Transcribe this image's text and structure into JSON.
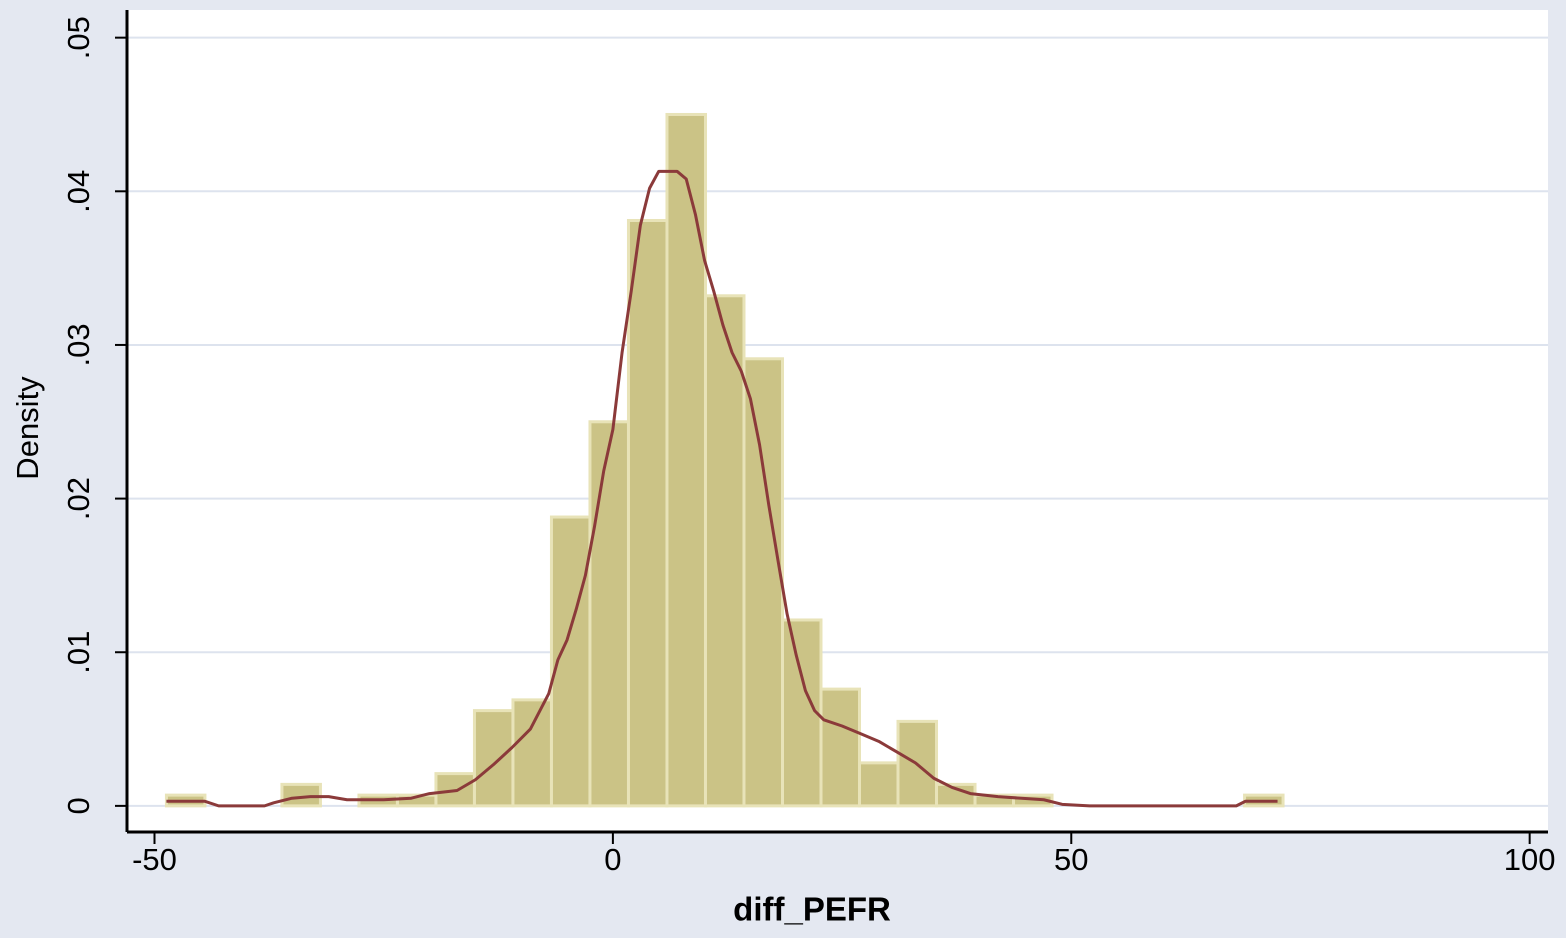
{
  "chart_data": {
    "type": "histogram",
    "x_label": "diff_PEFR",
    "y_label": "Density",
    "bins": [
      -48.7,
      -44.5,
      -40.3,
      -36.1,
      -31.9,
      -27.7,
      -23.5,
      -19.3,
      -15.1,
      -10.9,
      -6.7,
      -2.5,
      1.7,
      5.9,
      10.1,
      14.3,
      18.5,
      22.7,
      26.9,
      31.1,
      35.3,
      39.5,
      43.7,
      47.9,
      52.1,
      56.3,
      60.5,
      64.7,
      68.9,
      73.1
    ],
    "values": [
      0.0007,
      0,
      0,
      0.0014,
      0,
      0.0007,
      0.0007,
      0.0021,
      0.0062,
      0.0069,
      0.0188,
      0.025,
      0.0381,
      0.045,
      0.0332,
      0.0291,
      0.0121,
      0.0076,
      0.0028,
      0.0055,
      0.0014,
      0.0007,
      0.0007,
      0,
      0,
      0,
      0,
      0,
      0.0007
    ],
    "color": "#cbc386",
    "edge_color": "#e8e3b8",
    "density_curve": {
      "color": "#8b3a3a",
      "x": [
        -48.7,
        -44.5,
        -43,
        -38,
        -37,
        -35,
        -33,
        -31,
        -29,
        -25,
        -22,
        -20,
        -17,
        -15,
        -13,
        -11,
        -9,
        -7,
        -6,
        -5,
        -4,
        -3,
        -2,
        -1,
        0,
        1,
        2,
        3,
        4,
        5,
        6,
        7,
        8,
        9,
        10,
        11,
        12,
        13,
        14,
        15,
        16,
        17,
        18,
        19,
        20,
        21,
        22,
        23,
        25,
        27,
        29,
        31,
        33,
        35,
        37,
        39,
        42,
        47,
        49,
        52,
        68,
        69,
        72.5
      ],
      "values": [
        0.0003,
        0.0003,
        0,
        0,
        0.0002,
        0.0005,
        0.0006,
        0.0006,
        0.0004,
        0.0004,
        0.0005,
        0.0008,
        0.001,
        0.0017,
        0.0027,
        0.0038,
        0.005,
        0.0073,
        0.0095,
        0.0108,
        0.0128,
        0.015,
        0.0182,
        0.0218,
        0.0245,
        0.0295,
        0.0335,
        0.0378,
        0.0402,
        0.0413,
        0.0413,
        0.0413,
        0.0408,
        0.0385,
        0.0355,
        0.0335,
        0.0313,
        0.0295,
        0.0283,
        0.0265,
        0.0235,
        0.0196,
        0.016,
        0.0125,
        0.0098,
        0.0075,
        0.0062,
        0.0056,
        0.0052,
        0.0047,
        0.0042,
        0.0035,
        0.0028,
        0.0018,
        0.0012,
        0.0008,
        0.0006,
        0.0004,
        0.0001,
        0,
        0,
        0.0003,
        0.0003
      ]
    },
    "xlim": [
      -53,
      102
    ],
    "ylim": [
      -0.0017,
      0.0518
    ],
    "xticks": [
      -50,
      0,
      50,
      100
    ],
    "yticks": [
      0,
      {
        "value": 0.01,
        "label": ".01"
      },
      {
        "value": 0.02,
        "label": ".02"
      },
      {
        "value": 0.03,
        "label": ".03"
      },
      {
        "value": 0.04,
        "label": ".04"
      },
      {
        "value": 0.05,
        "label": ".05"
      }
    ],
    "grid": true
  }
}
